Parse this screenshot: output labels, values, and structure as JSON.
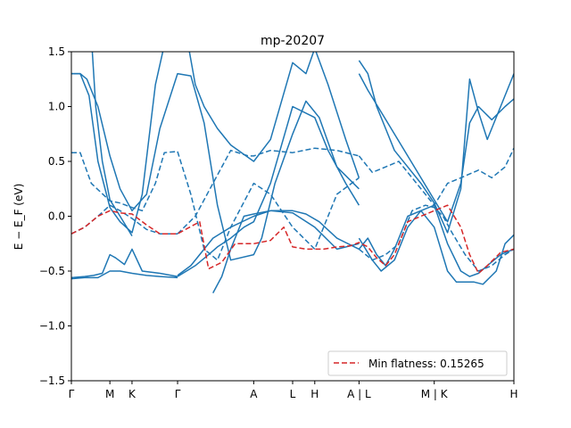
{
  "chart_data": {
    "type": "line",
    "title": "mp-20207",
    "xlabel": "",
    "ylabel": "E − E_F (eV)",
    "ylim": [
      -1.5,
      1.5
    ],
    "yticks": [
      -1.5,
      -1.0,
      -0.5,
      0.0,
      0.5,
      1.0,
      1.5
    ],
    "ytick_labels": [
      "−1.5",
      "−1.0",
      "−0.5",
      "0.0",
      "0.5",
      "1.0",
      "1.5"
    ],
    "xlim": [
      0,
      10
    ],
    "xticks": [
      {
        "x": 0.0,
        "label": "Γ"
      },
      {
        "x": 0.87,
        "label": "M"
      },
      {
        "x": 1.37,
        "label": "K"
      },
      {
        "x": 2.4,
        "label": "Γ"
      },
      {
        "x": 4.12,
        "label": "A"
      },
      {
        "x": 5.0,
        "label": "L"
      },
      {
        "x": 5.5,
        "label": "H"
      },
      {
        "x": 6.5,
        "label": "A | L"
      },
      {
        "x": 8.2,
        "label": "M | K"
      },
      {
        "x": 10.0,
        "label": "H"
      }
    ],
    "grid": false,
    "legend": {
      "placement": "lower-right",
      "entries": [
        "Min flatness: 0.15265"
      ]
    },
    "colors": {
      "band": "#1f77b4",
      "highlight": "#d62728"
    },
    "series": [
      {
        "style": "solid",
        "color": "#1f77b4",
        "x": [
          0,
          0.3,
          0.6,
          0.87,
          1.1,
          1.37,
          1.7,
          2.0,
          2.4
        ],
        "y": [
          -0.57,
          -0.56,
          -0.56,
          -0.5,
          -0.5,
          -0.52,
          -0.54,
          -0.55,
          -0.56
        ]
      },
      {
        "style": "solid",
        "color": "#1f77b4",
        "x": [
          0,
          0.3,
          0.5,
          0.7,
          0.87,
          1.0,
          1.2,
          1.37,
          1.6,
          2.0,
          2.4
        ],
        "y": [
          -0.56,
          -0.55,
          -0.54,
          -0.52,
          -0.35,
          -0.38,
          -0.44,
          -0.3,
          -0.5,
          -0.52,
          -0.55
        ]
      },
      {
        "style": "solid",
        "color": "#1f77b4",
        "x": [
          0,
          0.2,
          0.4,
          0.6,
          0.87,
          1.1,
          1.37,
          1.6,
          1.9,
          2.15
        ],
        "y": [
          1.3,
          1.3,
          1.1,
          0.5,
          0.08,
          -0.05,
          -0.15,
          0.2,
          1.2,
          1.65
        ]
      },
      {
        "style": "solid",
        "color": "#1f77b4",
        "x": [
          0.45,
          0.55,
          0.7,
          0.87,
          1.1,
          1.37
        ],
        "y": [
          1.65,
          1.0,
          0.5,
          0.15,
          0.0,
          -0.18
        ]
      },
      {
        "style": "solid",
        "color": "#1f77b4",
        "x": [
          2.6,
          2.8,
          3.0,
          3.3,
          3.6,
          4.12,
          4.5,
          5.0,
          5.3,
          5.5,
          5.8,
          6.2,
          6.5
        ],
        "y": [
          1.65,
          1.2,
          1.0,
          0.8,
          0.65,
          0.5,
          0.7,
          1.4,
          1.3,
          1.53,
          1.2,
          0.7,
          0.35
        ]
      },
      {
        "style": "solid",
        "color": "#1f77b4",
        "x": [
          2.4,
          2.6,
          2.8,
          3.1,
          3.3,
          3.6,
          3.9,
          4.12,
          4.5,
          5.0,
          5.5,
          5.8,
          6.2,
          6.5
        ],
        "y": [
          -0.55,
          -0.5,
          -0.45,
          -0.35,
          -0.28,
          -0.2,
          -0.1,
          -0.05,
          0.3,
          1.0,
          0.9,
          0.6,
          0.3,
          0.1
        ]
      },
      {
        "style": "solid",
        "color": "#1f77b4",
        "x": [
          0,
          0.2,
          0.35,
          0.6,
          0.87,
          1.1,
          1.37,
          1.7,
          2.0,
          2.4,
          2.7,
          3.0,
          3.3,
          3.6,
          4.12,
          4.3,
          4.6,
          5.0,
          5.3,
          5.6,
          6.0,
          6.5
        ],
        "y": [
          1.3,
          1.3,
          1.25,
          1.0,
          0.55,
          0.25,
          0.05,
          0.2,
          0.8,
          1.3,
          1.28,
          0.85,
          0.1,
          -0.4,
          -0.35,
          -0.2,
          0.3,
          0.75,
          1.05,
          0.9,
          0.45,
          0.25
        ]
      },
      {
        "style": "solid",
        "color": "#1f77b4",
        "x": [
          3.2,
          3.4,
          3.6,
          3.9,
          4.12,
          4.5,
          5.0,
          5.3,
          5.6,
          6.0,
          6.5
        ],
        "y": [
          -0.7,
          -0.55,
          -0.3,
          0.0,
          0.02,
          0.05,
          0.05,
          0.02,
          -0.05,
          -0.2,
          -0.3
        ]
      },
      {
        "style": "solid",
        "color": "#1f77b4",
        "x": [
          2.4,
          2.7,
          3.0,
          3.2,
          3.6,
          4.12,
          4.5,
          5.0,
          5.5,
          6.0,
          6.5
        ],
        "y": [
          -0.54,
          -0.45,
          -0.3,
          -0.2,
          -0.1,
          0.0,
          0.05,
          0.03,
          -0.1,
          -0.3,
          -0.25
        ]
      },
      {
        "style": "solid",
        "color": "#1f77b4",
        "x": [
          6.5,
          6.7,
          6.9,
          7.1,
          7.3,
          7.6,
          7.9,
          8.2,
          8.5,
          8.8,
          9.0,
          9.2,
          9.4,
          9.7,
          10.0
        ],
        "y": [
          1.42,
          1.3,
          1.0,
          0.8,
          0.6,
          0.45,
          0.3,
          0.12,
          -0.15,
          0.25,
          1.25,
          0.95,
          0.7,
          1.0,
          1.3
        ]
      },
      {
        "style": "solid",
        "color": "#1f77b4",
        "x": [
          6.5,
          6.7,
          7.0,
          7.3,
          7.6,
          7.9,
          8.2,
          8.5,
          8.8,
          9.0,
          9.2,
          9.5,
          9.8,
          10.0
        ],
        "y": [
          1.3,
          1.15,
          0.95,
          0.75,
          0.55,
          0.35,
          0.15,
          -0.05,
          0.3,
          0.85,
          1.0,
          0.88,
          1.0,
          1.07
        ]
      },
      {
        "style": "solid",
        "color": "#1f77b4",
        "x": [
          6.5,
          6.7,
          6.9,
          7.1,
          7.3,
          7.6,
          7.9,
          8.2,
          8.5,
          8.7,
          8.9,
          9.1,
          9.3,
          9.6,
          9.8,
          10.0
        ],
        "y": [
          -0.3,
          -0.2,
          -0.35,
          -0.45,
          -0.3,
          0.0,
          0.05,
          -0.1,
          -0.5,
          -0.6,
          -0.6,
          -0.6,
          -0.62,
          -0.5,
          -0.25,
          -0.17
        ]
      },
      {
        "style": "solid",
        "color": "#1f77b4",
        "x": [
          6.5,
          6.8,
          7.0,
          7.3,
          7.6,
          7.9,
          8.2,
          8.5,
          8.8,
          9.0,
          9.2,
          9.4,
          9.7,
          10.0
        ],
        "y": [
          -0.2,
          -0.4,
          -0.5,
          -0.4,
          -0.1,
          0.05,
          0.1,
          -0.25,
          -0.5,
          -0.55,
          -0.52,
          -0.45,
          -0.35,
          -0.3
        ]
      },
      {
        "style": "dashed",
        "color": "#1f77b4",
        "x": [
          0,
          0.2,
          0.45,
          0.87,
          1.1,
          1.37,
          1.6,
          1.9,
          2.1,
          2.4
        ],
        "y": [
          0.58,
          0.58,
          0.3,
          0.14,
          0.12,
          0.08,
          0.05,
          0.3,
          0.58,
          0.59
        ]
      },
      {
        "style": "dashed",
        "color": "#1f77b4",
        "x": [
          0,
          0.3,
          0.6,
          0.87,
          1.1,
          1.37,
          1.7,
          2.0,
          2.4
        ],
        "y": [
          -0.16,
          -0.1,
          0.0,
          0.1,
          0.05,
          -0.02,
          -0.12,
          -0.16,
          -0.16
        ]
      },
      {
        "style": "dashed",
        "color": "#1f77b4",
        "x": [
          2.4,
          2.7,
          3.0,
          3.3,
          3.6,
          4.12,
          4.5,
          5.0,
          5.5,
          6.0,
          6.5
        ],
        "y": [
          0.59,
          0.2,
          -0.3,
          -0.4,
          -0.1,
          0.3,
          0.2,
          -0.1,
          -0.3,
          0.2,
          0.35
        ]
      },
      {
        "style": "dashed",
        "color": "#1f77b4",
        "x": [
          2.4,
          2.8,
          3.2,
          3.6,
          4.0,
          4.12,
          4.5,
          5.0,
          5.5,
          6.0,
          6.5
        ],
        "y": [
          -0.16,
          0.0,
          0.3,
          0.6,
          0.55,
          0.55,
          0.6,
          0.58,
          0.62,
          0.6,
          0.55
        ]
      },
      {
        "style": "dashed",
        "color": "#1f77b4",
        "x": [
          6.5,
          6.8,
          7.1,
          7.4,
          7.7,
          8.0,
          8.2,
          8.5,
          8.8,
          9.2,
          9.5,
          9.8,
          10.0
        ],
        "y": [
          0.55,
          0.4,
          0.45,
          0.5,
          0.35,
          0.2,
          0.1,
          0.3,
          0.35,
          0.42,
          0.35,
          0.45,
          0.62
        ]
      },
      {
        "style": "dashed",
        "color": "#1f77b4",
        "x": [
          6.5,
          6.8,
          7.1,
          7.4,
          7.7,
          8.0,
          8.2,
          8.4,
          8.6,
          8.9,
          9.2,
          9.5,
          9.8,
          10.0
        ],
        "y": [
          -0.3,
          -0.4,
          -0.35,
          -0.25,
          0.05,
          0.1,
          0.08,
          0.0,
          -0.15,
          -0.35,
          -0.5,
          -0.45,
          -0.35,
          -0.3
        ]
      },
      {
        "style": "dashed",
        "color": "#d62728",
        "name": "Min flatness: 0.15265",
        "x": [
          0,
          0.3,
          0.6,
          0.87,
          1.1,
          1.37,
          1.7,
          2.0,
          2.4,
          2.9,
          3.1,
          3.4,
          3.7,
          4.12,
          4.5,
          4.8,
          5.0,
          5.3,
          5.7,
          6.0,
          6.3,
          6.5,
          6.7,
          6.9,
          7.1,
          7.3,
          7.6,
          7.9,
          8.2,
          8.5,
          8.8,
          9.0,
          9.2,
          9.4,
          9.7,
          10.0
        ],
        "y": [
          -0.16,
          -0.1,
          0.0,
          0.05,
          0.03,
          0.02,
          -0.08,
          -0.16,
          -0.16,
          -0.05,
          -0.48,
          -0.42,
          -0.25,
          -0.25,
          -0.22,
          -0.1,
          -0.28,
          -0.3,
          -0.3,
          -0.28,
          -0.27,
          -0.24,
          -0.28,
          -0.38,
          -0.45,
          -0.35,
          -0.05,
          0.0,
          0.05,
          0.1,
          -0.1,
          -0.35,
          -0.52,
          -0.45,
          -0.33,
          -0.3
        ]
      }
    ]
  }
}
